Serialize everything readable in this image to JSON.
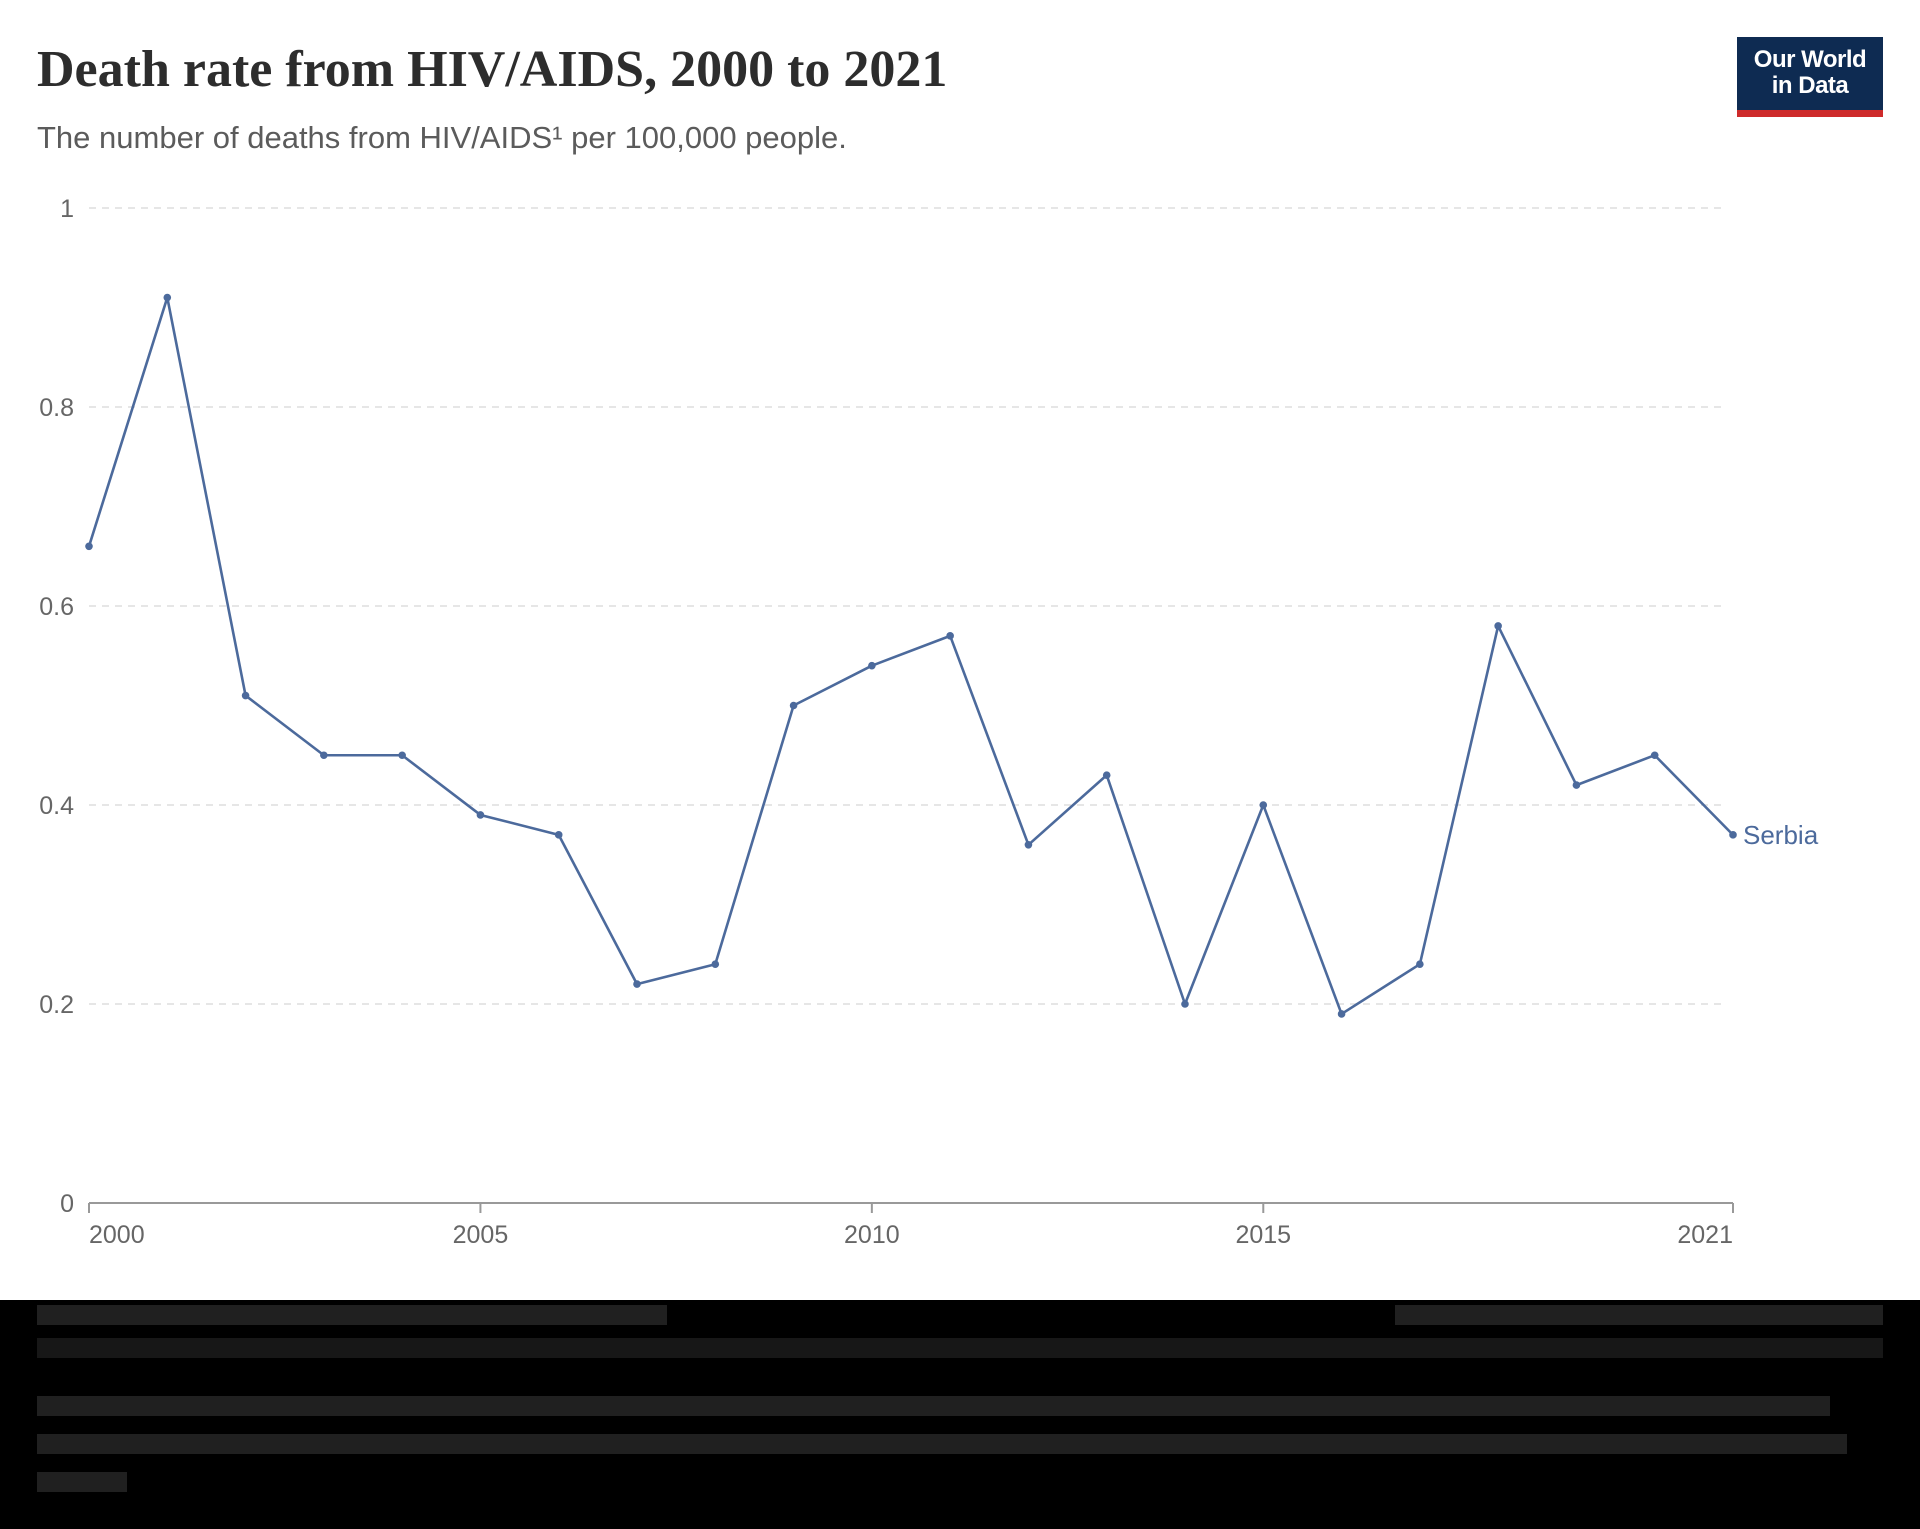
{
  "header": {
    "title": "Death rate from HIV/AIDS, 2000 to 2021",
    "subtitle": "The number of deaths from HIV/AIDS¹ per 100,000 people."
  },
  "logo": {
    "line1": "Our World",
    "line2": "in Data"
  },
  "colors": {
    "series": "#4c6a9c",
    "grid": "#dddddd",
    "axis": "#999999",
    "tick_text": "#666666",
    "logo_bg": "#0e2b52",
    "logo_accent": "#ce2a2a"
  },
  "chart_data": {
    "type": "line",
    "title": "Death rate from HIV/AIDS, 2000 to 2021",
    "xlabel": "",
    "ylabel": "",
    "x": [
      2000,
      2001,
      2002,
      2003,
      2004,
      2005,
      2006,
      2007,
      2008,
      2009,
      2010,
      2011,
      2012,
      2013,
      2014,
      2015,
      2016,
      2017,
      2018,
      2019,
      2020,
      2021
    ],
    "series": [
      {
        "name": "Serbia",
        "values": [
          0.66,
          0.91,
          0.51,
          0.45,
          0.45,
          0.39,
          0.37,
          0.22,
          0.24,
          0.5,
          0.54,
          0.57,
          0.36,
          0.43,
          0.2,
          0.4,
          0.19,
          0.24,
          0.58,
          0.42,
          0.45,
          0.37
        ]
      }
    ],
    "ylim": [
      0,
      1
    ],
    "xlim": [
      2000,
      2021
    ],
    "y_ticks": [
      0,
      0.2,
      0.4,
      0.6,
      0.8,
      1
    ],
    "y_tick_labels": [
      "0",
      "0.2",
      "0.4",
      "0.6",
      "0.8",
      "1"
    ],
    "x_ticks": [
      2000,
      2005,
      2010,
      2015,
      2021
    ],
    "x_tick_labels": [
      "2000",
      "2005",
      "2010",
      "2015",
      "2021"
    ],
    "grid": "horizontal-dashed",
    "legend": "inline-right-end"
  }
}
